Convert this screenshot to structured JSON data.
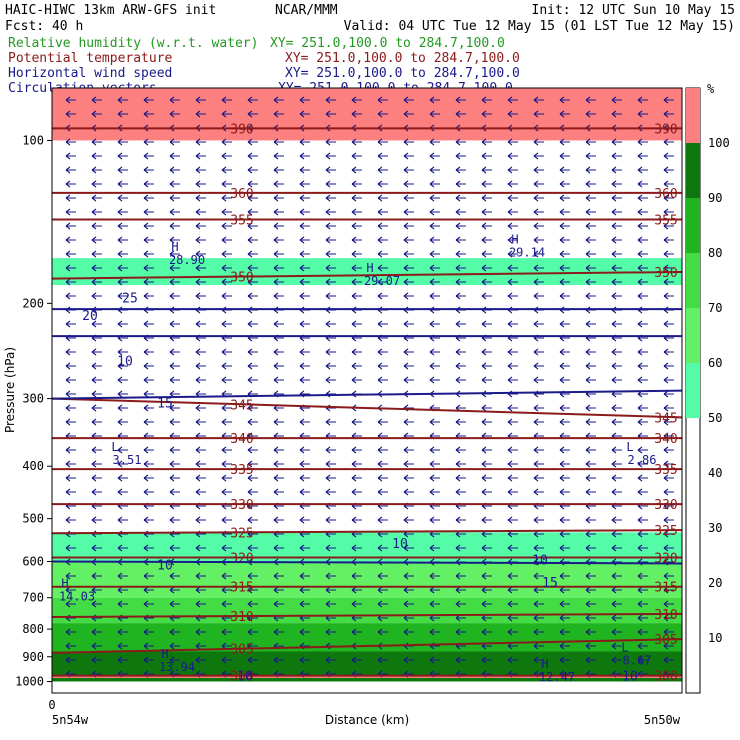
{
  "header": {
    "model": "HAIC-HIWC 13km ARW-GFS init",
    "source": "NCAR/MMM",
    "init": "Init: 12 UTC Sun 10 May 15",
    "fcst": "Fcst:   40 h",
    "valid": "Valid: 04 UTC Tue 12 May 15 (01 LST Tue 12 May 15)"
  },
  "fields": [
    {
      "name": "Relative humidity (w.r.t. water)",
      "xy": "XY= 251.0,100.0 to 284.7,100.0",
      "color": "#229922"
    },
    {
      "name": "Potential temperature",
      "xy": "XY= 251.0,100.0 to 284.7,100.0",
      "color": "#8b1a1a"
    },
    {
      "name": "Horizontal wind speed",
      "xy": "XY= 251.0,100.0 to 284.7,100.0",
      "color": "#1a1a8b"
    },
    {
      "name": "Circulation vectors",
      "xy": "XY= 251.0,100.0 to 284.7,100.0",
      "color": "#1a1a8b"
    }
  ],
  "colorbar": {
    "unit": "%",
    "ticks": [
      "10",
      "20",
      "30",
      "40",
      "50",
      "60",
      "70",
      "80",
      "90",
      "100"
    ],
    "bands": [
      {
        "from": 50,
        "to": 60,
        "color": "#54fca8"
      },
      {
        "from": 60,
        "to": 70,
        "color": "#64f064"
      },
      {
        "from": 70,
        "to": 80,
        "color": "#44dc44"
      },
      {
        "from": 80,
        "to": 90,
        "color": "#20b420"
      },
      {
        "from": 90,
        "to": 100,
        "color": "#0e780e"
      },
      {
        "from": 100,
        "to": 110,
        "color": "#fc8080"
      }
    ]
  },
  "chart_data": {
    "type": "heatmap",
    "ylabel": "Pressure (hPa)",
    "xlabel": "Distance (km)",
    "x_start_label": "5n54w",
    "x_end_label": "5n50w",
    "x_origin_tick": "0",
    "y_ticks": [
      "100",
      "200",
      "300",
      "400",
      "500",
      "600",
      "700",
      "800",
      "900",
      "1000"
    ],
    "ylim": [
      1050,
      80
    ],
    "theta_contours": {
      "color": "#8b1a1a",
      "levels": [
        {
          "value": 300,
          "label": "300",
          "pressure_left": 975,
          "pressure_right": 975
        },
        {
          "value": 305,
          "label": "305",
          "pressure_left": 885,
          "pressure_right": 835
        },
        {
          "value": 310,
          "label": "310",
          "pressure_left": 760,
          "pressure_right": 750
        },
        {
          "value": 315,
          "label": "315",
          "pressure_left": 668,
          "pressure_right": 668
        },
        {
          "value": 320,
          "label": "320",
          "pressure_left": 590,
          "pressure_right": 590
        },
        {
          "value": 325,
          "label": "325",
          "pressure_left": 532,
          "pressure_right": 525
        },
        {
          "value": 330,
          "label": "330",
          "pressure_left": 470,
          "pressure_right": 470
        },
        {
          "value": 335,
          "label": "335",
          "pressure_left": 405,
          "pressure_right": 405
        },
        {
          "value": 340,
          "label": "340",
          "pressure_left": 355,
          "pressure_right": 355
        },
        {
          "value": 345,
          "label": "345",
          "pressure_left": 300,
          "pressure_right": 325
        },
        {
          "value": 350,
          "label": "350",
          "pressure_left": 180,
          "pressure_right": 175
        },
        {
          "value": 355,
          "label": "355",
          "pressure_left": 140,
          "pressure_right": 140
        },
        {
          "value": 360,
          "label": "360",
          "pressure_left": 125,
          "pressure_right": 125
        },
        {
          "value": 390,
          "label": "390",
          "pressure_left": 95,
          "pressure_right": 95
        }
      ]
    },
    "wind_speed_contours": {
      "color": "#1a1a8b",
      "labels": [
        "10",
        "15",
        "20",
        "25",
        "10",
        "10",
        "10",
        "15",
        "10",
        "10"
      ]
    },
    "extrema": [
      {
        "type": "H",
        "value": "28.90"
      },
      {
        "type": "H",
        "value": "29.07"
      },
      {
        "type": "H",
        "value": "29.14"
      },
      {
        "type": "L",
        "value": "3.51"
      },
      {
        "type": "L",
        "value": "2.86"
      },
      {
        "type": "H",
        "value": "14.03"
      },
      {
        "type": "H",
        "value": "13.94"
      },
      {
        "type": "L",
        "value": "8.67"
      },
      {
        "type": "H",
        "value": "12.47"
      }
    ],
    "rh_bands": [
      {
        "range": "100-110",
        "top_pressure": 80,
        "bottom_pressure": 100
      },
      {
        "range": "50-60",
        "top_pressure": 165,
        "bottom_pressure": 185
      },
      {
        "range": "50-60",
        "top_pressure": 530,
        "bottom_pressure": 600
      },
      {
        "range": "60-70",
        "top_pressure": 600,
        "bottom_pressure": 700
      },
      {
        "range": "70-80",
        "top_pressure": 700,
        "bottom_pressure": 780
      },
      {
        "range": "80-90",
        "top_pressure": 780,
        "bottom_pressure": 880
      },
      {
        "range": "90-100",
        "top_pressure": 880,
        "bottom_pressure": 1000
      },
      {
        "range": "100-110",
        "top_pressure": 975,
        "bottom_pressure": 985
      }
    ]
  }
}
